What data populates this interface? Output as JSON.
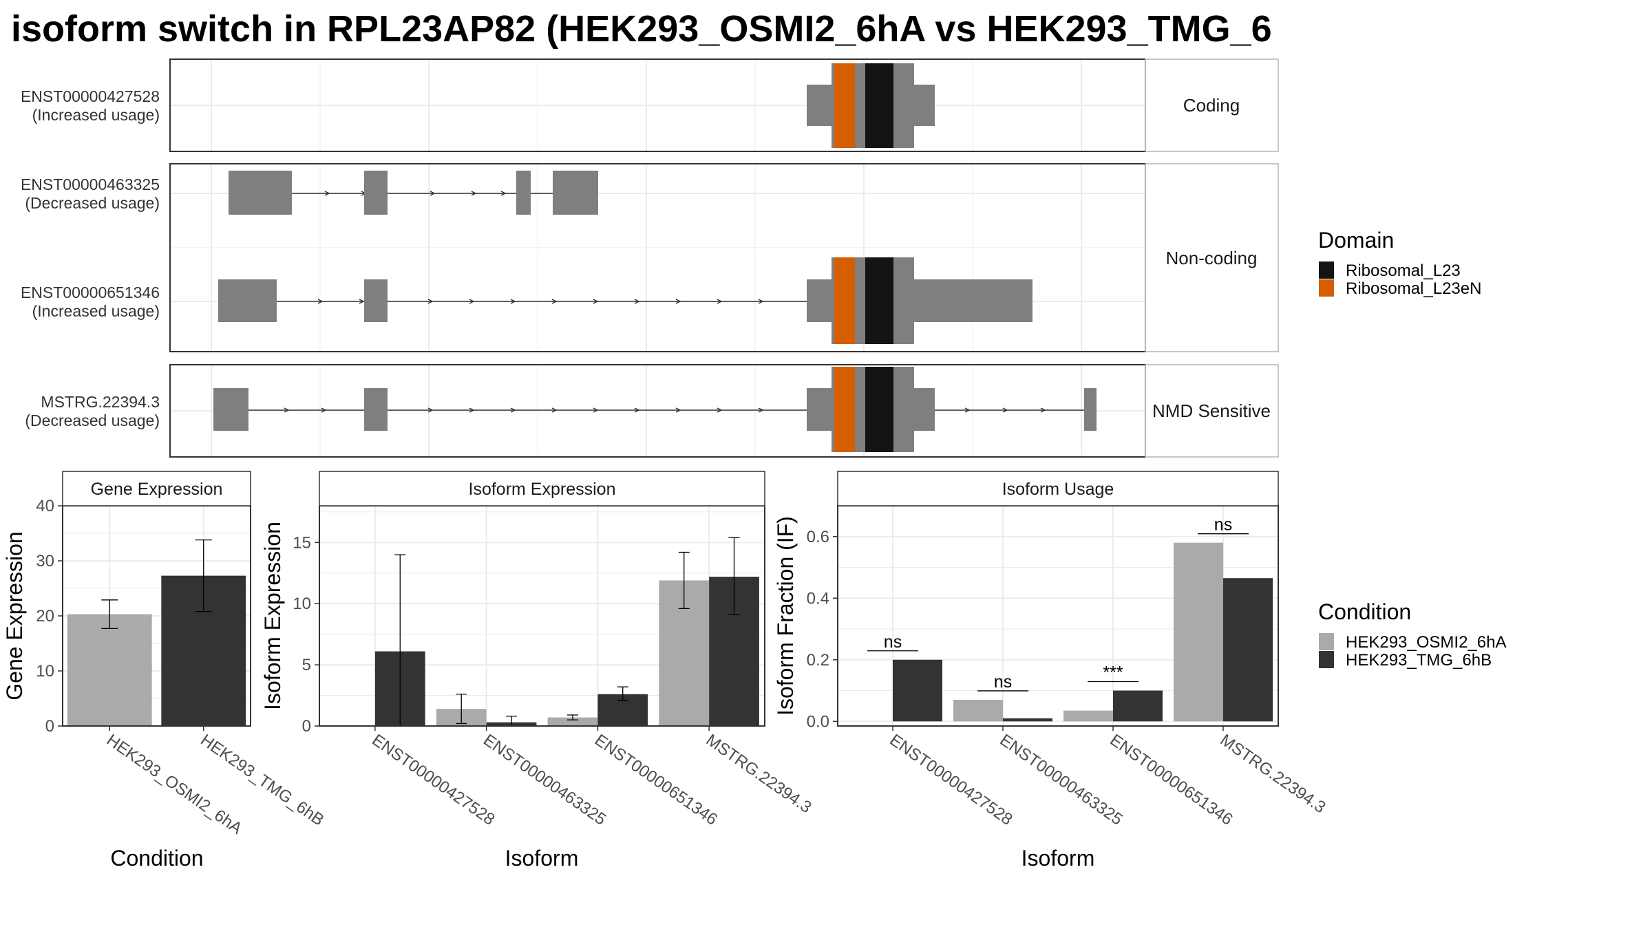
{
  "title": "isoform switch in RPL23AP82 (HEK293_OSMI2_6hA vs HEK293_TMG_6",
  "structure": {
    "panels": [
      {
        "label": "Coding",
        "transcripts": [
          {
            "id": "ENST00000427528",
            "usage": "(Increased usage)"
          }
        ]
      },
      {
        "label": "Non-coding",
        "transcripts": [
          {
            "id": "ENST00000463325",
            "usage": "(Decreased usage)"
          },
          {
            "id": "ENST00000651346",
            "usage": "(Increased usage)"
          }
        ]
      },
      {
        "label": "NMD Sensitive",
        "transcripts": [
          {
            "id": "MSTRG.22394.3",
            "usage": "(Decreased usage)"
          }
        ]
      }
    ]
  },
  "legends": {
    "domain": {
      "title": "Domain",
      "items": [
        {
          "label": "Ribosomal_L23",
          "color": "#141414"
        },
        {
          "label": "Ribosomal_L23eN",
          "color": "#D55E00"
        }
      ]
    },
    "condition": {
      "title": "Condition",
      "items": [
        {
          "label": "HEK293_OSMI2_6hA",
          "color": "#AAAAAA"
        },
        {
          "label": "HEK293_TMG_6hB",
          "color": "#333333"
        }
      ]
    }
  },
  "chart_data": [
    {
      "type": "bar",
      "title": "Gene Expression",
      "xlabel": "Condition",
      "ylabel": "Gene Expression",
      "ylim": [
        0,
        40
      ],
      "yticks": [
        0,
        10,
        20,
        30,
        40
      ],
      "categories": [
        "HEK293_OSMI2_6hA",
        "HEK293_TMG_6hB"
      ],
      "values": [
        20.3,
        27.3
      ],
      "error_low": [
        17.7,
        20.8
      ],
      "error_high": [
        22.9,
        33.8
      ],
      "colors": [
        "#AAAAAA",
        "#333333"
      ]
    },
    {
      "type": "bar",
      "title": "Isoform Expression",
      "xlabel": "Isoform",
      "ylabel": "Isoform Expression",
      "ylim": [
        0,
        18
      ],
      "yticks": [
        0,
        5,
        10,
        15
      ],
      "categories": [
        "ENST00000427528",
        "ENST00000463325",
        "ENST00000651346",
        "MSTRG.22394.3"
      ],
      "series": [
        {
          "name": "HEK293_OSMI2_6hA",
          "values": [
            0.0,
            1.4,
            0.7,
            11.9
          ],
          "error_low": [
            0.0,
            0.2,
            0.5,
            9.6
          ],
          "error_high": [
            0.0,
            2.6,
            0.9,
            14.2
          ]
        },
        {
          "name": "HEK293_TMG_6hB",
          "values": [
            6.1,
            0.3,
            2.6,
            12.2
          ],
          "error_low": [
            0.0,
            0.0,
            2.1,
            9.1
          ],
          "error_high": [
            14.0,
            0.8,
            3.2,
            15.4
          ]
        }
      ]
    },
    {
      "type": "bar",
      "title": "Isoform Usage",
      "xlabel": "Isoform",
      "ylabel": "Isoform Fraction (IF)",
      "ylim": [
        -0.015,
        0.7
      ],
      "yticks": [
        0.0,
        0.2,
        0.4,
        0.6
      ],
      "ytick_labels": [
        "0.0",
        "0.2",
        "0.4",
        "0.6"
      ],
      "categories": [
        "ENST00000427528",
        "ENST00000463325",
        "ENST00000651346",
        "MSTRG.22394.3"
      ],
      "series": [
        {
          "name": "HEK293_OSMI2_6hA",
          "values": [
            0.0,
            0.07,
            0.035,
            0.58
          ]
        },
        {
          "name": "HEK293_TMG_6hB",
          "values": [
            0.2,
            0.01,
            0.1,
            0.465
          ]
        }
      ],
      "significance": [
        "ns",
        "ns",
        "***",
        "ns"
      ]
    }
  ]
}
